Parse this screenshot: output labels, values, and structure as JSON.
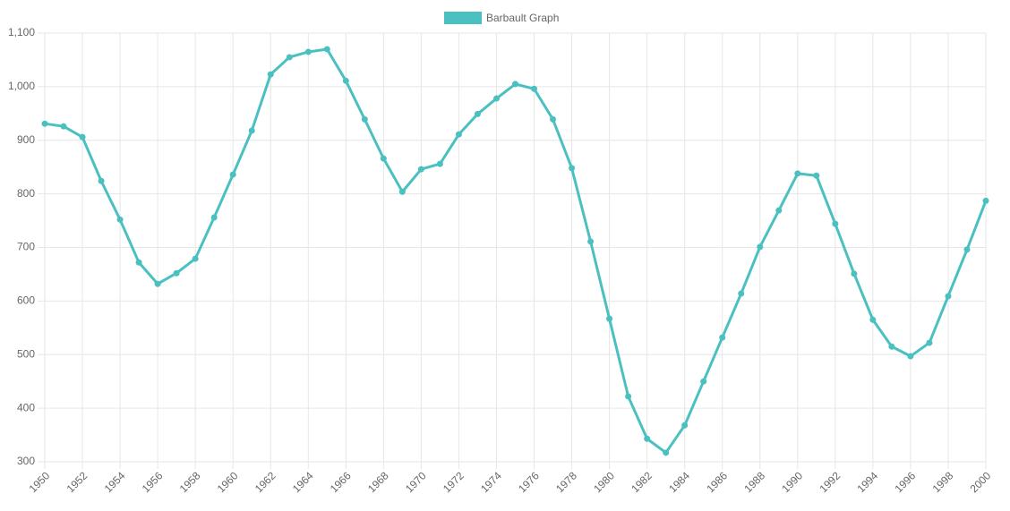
{
  "chart_data": {
    "type": "line",
    "x": [
      1950,
      1951,
      1952,
      1953,
      1954,
      1955,
      1956,
      1957,
      1958,
      1959,
      1960,
      1961,
      1962,
      1963,
      1964,
      1965,
      1966,
      1967,
      1968,
      1969,
      1970,
      1971,
      1972,
      1973,
      1974,
      1975,
      1976,
      1977,
      1978,
      1979,
      1980,
      1981,
      1982,
      1983,
      1984,
      1985,
      1986,
      1987,
      1988,
      1989,
      1990,
      1991,
      1992,
      1993,
      1994,
      1995,
      1996,
      1997,
      1998,
      1999,
      2000
    ],
    "series": [
      {
        "name": "Barbault Graph",
        "color": "#4bc0c0",
        "values": [
          931,
          926,
          906,
          824,
          752,
          672,
          632,
          652,
          679,
          756,
          836,
          918,
          1023,
          1055,
          1065,
          1070,
          1011,
          939,
          866,
          804,
          846,
          856,
          911,
          949,
          978,
          1005,
          996,
          939,
          848,
          711,
          567,
          422,
          343,
          317,
          368,
          450,
          532,
          614,
          701,
          769,
          838,
          834,
          744,
          651,
          565,
          515,
          497,
          522,
          609,
          696,
          787
        ]
      }
    ],
    "xlim": [
      1950,
      2000
    ],
    "xticks": [
      1950,
      1952,
      1954,
      1956,
      1958,
      1960,
      1962,
      1964,
      1966,
      1968,
      1970,
      1972,
      1974,
      1976,
      1978,
      1980,
      1982,
      1984,
      1986,
      1988,
      1990,
      1992,
      1994,
      1996,
      1998,
      2000
    ],
    "ylim": [
      300,
      1100
    ],
    "yticks": [
      300,
      400,
      500,
      600,
      700,
      800,
      900,
      {
        "value": 1000,
        "label": "1,000"
      },
      {
        "value": 1100,
        "label": "1,100"
      }
    ],
    "grid": true,
    "legend": "top"
  }
}
